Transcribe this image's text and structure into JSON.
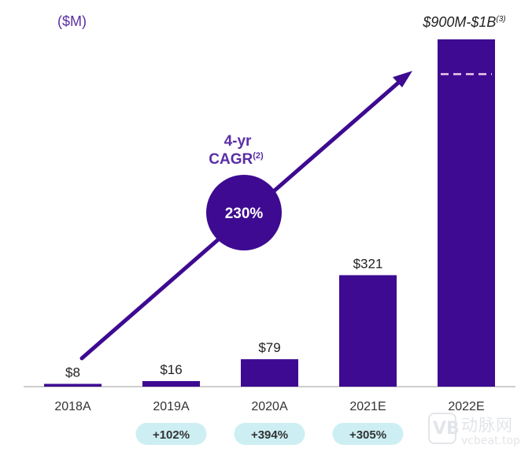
{
  "unit_label": "($M)",
  "cagr": {
    "line1": "4-yr",
    "line2": "CAGR",
    "footnote": "(2)",
    "value": "230%"
  },
  "top_label": {
    "text": "$900M-$1B",
    "footnote": "(3)"
  },
  "watermark": {
    "cn": "动脉网",
    "url": "vcbeat.top",
    "logo": "VB"
  },
  "chart_data": {
    "type": "bar",
    "categories": [
      "2018A",
      "2019A",
      "2020A",
      "2021E",
      "2022E"
    ],
    "values": [
      8,
      16,
      79,
      321,
      1000
    ],
    "range_low_2022E": 900,
    "value_labels": [
      "$8",
      "$16",
      "$79",
      "$321",
      ""
    ],
    "growth_labels": [
      "",
      "+102%",
      "+394%",
      "+305%",
      ""
    ],
    "ylim": [
      0,
      1000
    ],
    "colors": {
      "bar": "#3d0a91",
      "growth_pill": "#cdeff3",
      "dash": "#f3c8e6",
      "arrow": "#3d0a91"
    }
  }
}
